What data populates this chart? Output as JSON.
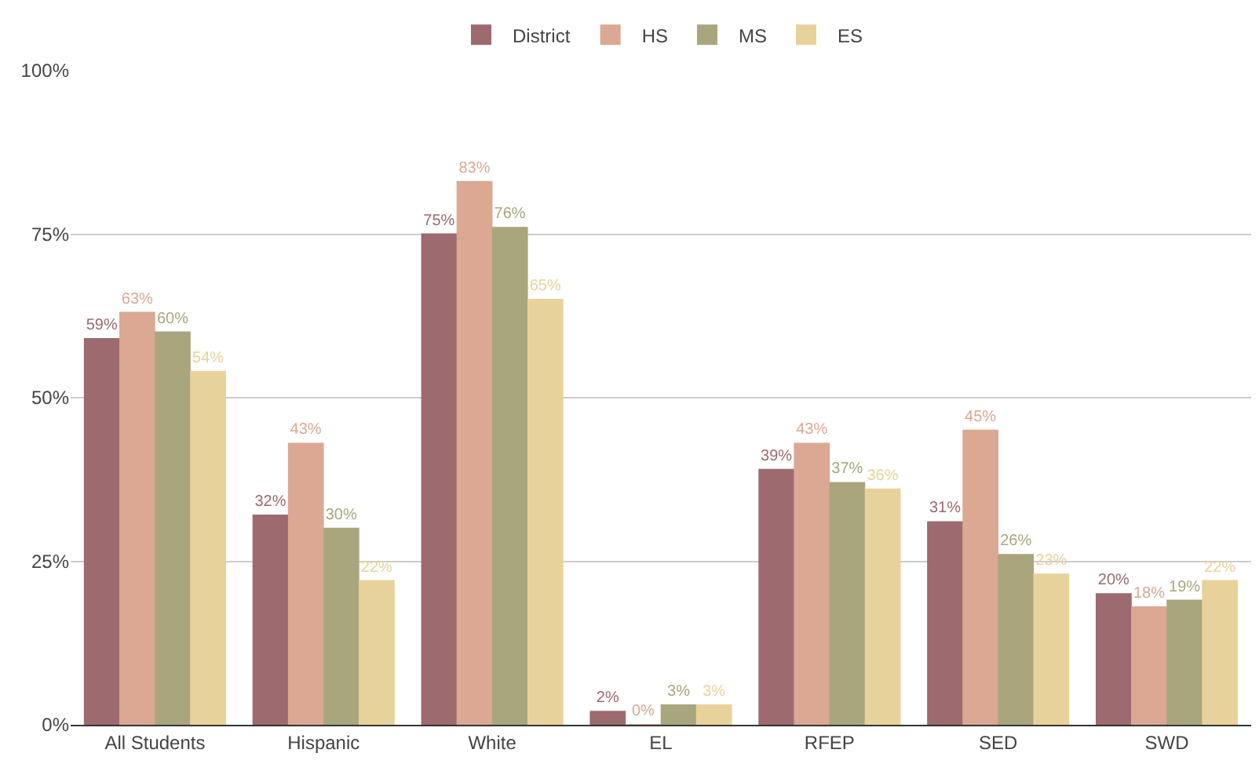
{
  "chart_data": {
    "type": "bar",
    "categories": [
      "All Students",
      "Hispanic",
      "White",
      "EL",
      "RFEP",
      "SED",
      "SWD"
    ],
    "series": [
      {
        "name": "District",
        "color": "#9c6a6f",
        "values": [
          59,
          32,
          75,
          2,
          39,
          31,
          20
        ],
        "value_labels": [
          "59%",
          "32%",
          "75%",
          "2%",
          "39%",
          "31%",
          "20%"
        ]
      },
      {
        "name": "HS",
        "color": "#daa893",
        "values": [
          63,
          43,
          83,
          0,
          43,
          45,
          18
        ],
        "value_labels": [
          "63%",
          "43%",
          "83%",
          "0%",
          "43%",
          "45%",
          "18%"
        ]
      },
      {
        "name": "MS",
        "color": "#a9a67e",
        "values": [
          60,
          30,
          76,
          3,
          37,
          26,
          19
        ],
        "value_labels": [
          "60%",
          "30%",
          "76%",
          "3%",
          "37%",
          "26%",
          "19%"
        ]
      },
      {
        "name": "ES",
        "color": "#e8d29c",
        "values": [
          54,
          22,
          65,
          3,
          36,
          23,
          22
        ],
        "value_labels": [
          "54%",
          "22%",
          "65%",
          "3%",
          "36%",
          "23%",
          "22%"
        ]
      }
    ],
    "ylim": [
      0,
      100
    ],
    "yticks": [
      {
        "value": 0,
        "label": "0%"
      },
      {
        "value": 25,
        "label": "25%"
      },
      {
        "value": 50,
        "label": "50%"
      },
      {
        "value": 75,
        "label": "75%"
      },
      {
        "value": 100,
        "label": "100%"
      }
    ],
    "grid": "y",
    "legend": "top"
  }
}
